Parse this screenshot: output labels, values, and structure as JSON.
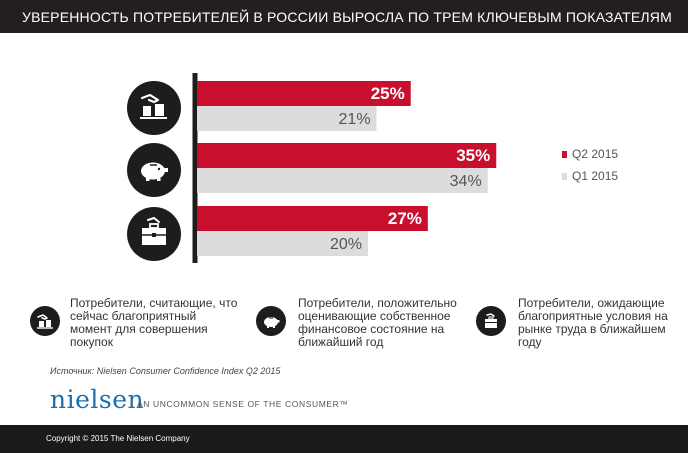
{
  "header": {
    "title": "УВЕРЕННОСТЬ ПОТРЕБИТЕЛЕЙ В РОССИИ ВЫРОСЛА ПО ТРЕМ КЛЮЧЕВЫМ ПОКАЗАТЕЛЯМ"
  },
  "chart_data": {
    "type": "bar",
    "orientation": "horizontal",
    "categories": [
      "",
      "",
      ""
    ],
    "series": [
      {
        "name": "Q2 2015",
        "values": [
          25,
          35,
          27
        ],
        "value_labels": [
          "25%",
          "35%",
          "27%"
        ],
        "color": "#c8102e"
      },
      {
        "name": "Q1 2015",
        "values": [
          21,
          34,
          20
        ],
        "value_labels": [
          "21%",
          "34%",
          "20%"
        ],
        "color": "#dcdcdc"
      }
    ],
    "xlim": [
      0,
      50
    ],
    "grid": false,
    "legend": "right",
    "category_icons": [
      "shopping-hand-icon",
      "piggy-bank-icon",
      "briefcase-icon"
    ]
  },
  "descriptions": [
    {
      "icon": "shopping-hand-icon",
      "lines": [
        "Потребители, считающие, что",
        "сейчас благоприятный",
        "момент для совершения",
        "покупок"
      ]
    },
    {
      "icon": "piggy-bank-icon",
      "lines": [
        "Потребители, положительно",
        "оценивающие собственное",
        "финансовое состояние на",
        "ближайший год"
      ]
    },
    {
      "icon": "briefcase-icon",
      "lines": [
        "Потребители, ожидающие",
        "благоприятные условия на",
        "рынке труда в ближайшем",
        "году"
      ]
    }
  ],
  "source": "Источник: Nielsen Consumer Confidence Index Q2 2015",
  "brand": {
    "logo": "nielsen",
    "tagline": "AN UNCOMMON SENSE OF THE CONSUMER™"
  },
  "footer": {
    "copyright": "Copyright © 2015 The Nielsen Company"
  },
  "colors": {
    "accent": "#c8102e",
    "secondary": "#dcdcdc",
    "dark": "#231f20",
    "logo": "#1a6fae"
  }
}
